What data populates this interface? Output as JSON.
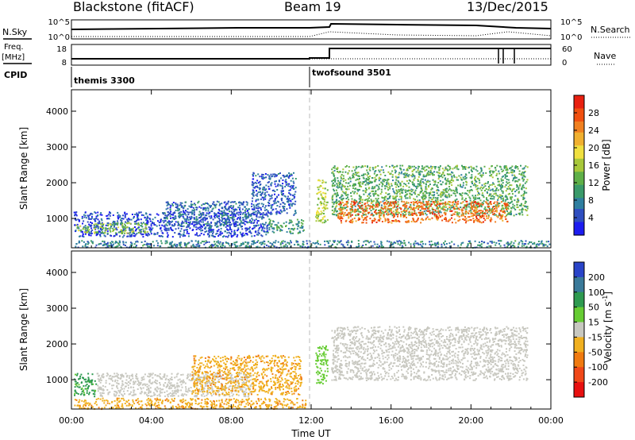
{
  "header": {
    "station": "Blackstone (fitACF)",
    "beam": "Beam 19",
    "date": "13/Dec/2015"
  },
  "side_labels": {
    "nsky": "N.Sky",
    "nsearch": "N.Search",
    "freq_top": "Freq.",
    "freq_unit": "[MHz]",
    "nave": "Nave",
    "cpid": "CPID",
    "nsky_ticks": [
      "10^5",
      "10^0"
    ],
    "nsearch_ticks": [
      "10^5",
      "10^0"
    ],
    "freq_ticks": [
      "18",
      "8"
    ],
    "nave_ticks": [
      "60",
      "0"
    ]
  },
  "cpid_modes": [
    {
      "label": "themis 3300",
      "start_hour": 0
    },
    {
      "label": "twofsound 3501",
      "start_hour": 12.2
    }
  ],
  "chart_data": [
    {
      "type": "heatmap",
      "panel": "power",
      "xlabel": "",
      "ylabel": "Slant Range [km]",
      "x_ticks": [
        "00:00",
        "04:00",
        "08:00",
        "12:00",
        "16:00",
        "20:00",
        "00:00"
      ],
      "x_range_hours": [
        0,
        24
      ],
      "y_range_km": [
        180,
        4600
      ],
      "y_ticks": [
        "1000",
        "2000",
        "3000",
        "4000"
      ],
      "colorbar": {
        "label": "Power [dB]",
        "ticks": [
          "4",
          "8",
          "12",
          "16",
          "20",
          "24",
          "28"
        ],
        "range": [
          0,
          32
        ],
        "colors": [
          "#1c1cf0",
          "#2f4fc0",
          "#2f7fa0",
          "#3a9a6a",
          "#5fb048",
          "#a8c83a",
          "#f0e040",
          "#f0b030",
          "#f08020",
          "#f05010",
          "#e82010"
        ]
      },
      "regions": [
        {
          "t0": 0.1,
          "t1": 9.8,
          "r0": 500,
          "r1": 1200,
          "level": 4
        },
        {
          "t0": 0.2,
          "t1": 3.8,
          "r0": 600,
          "r1": 900,
          "level": 14
        },
        {
          "t0": 4.6,
          "t1": 9.0,
          "r0": 800,
          "r1": 1500,
          "level": 6
        },
        {
          "t0": 9.0,
          "t1": 11.2,
          "r0": 1100,
          "r1": 2300,
          "level": 5
        },
        {
          "t0": 9.8,
          "t1": 11.6,
          "r0": 600,
          "r1": 1000,
          "level": 10
        },
        {
          "t0": 0.1,
          "t1": 24.0,
          "r0": 200,
          "r1": 400,
          "level": 8
        },
        {
          "t0": 12.2,
          "t1": 12.8,
          "r0": 900,
          "r1": 2100,
          "level": 16
        },
        {
          "t0": 13.0,
          "t1": 22.8,
          "r0": 1100,
          "r1": 2500,
          "level": 12
        },
        {
          "t0": 13.3,
          "t1": 21.8,
          "r0": 900,
          "r1": 1500,
          "level": 26
        }
      ]
    },
    {
      "type": "heatmap",
      "panel": "velocity",
      "xlabel": "Time UT",
      "ylabel": "Slant Range [km]",
      "x_ticks": [
        "00:00",
        "04:00",
        "08:00",
        "12:00",
        "16:00",
        "20:00",
        "00:00"
      ],
      "x_range_hours": [
        0,
        24
      ],
      "y_range_km": [
        180,
        4600
      ],
      "y_ticks": [
        "1000",
        "2000",
        "3000",
        "4000"
      ],
      "colorbar": {
        "label": "Velocity [m s^-1]",
        "ticks": [
          "200",
          "100",
          "50",
          "15",
          "-15",
          "-50",
          "-100",
          "-200"
        ],
        "colors": [
          "#2a44c8",
          "#3a7a9a",
          "#2e9a50",
          "#66cc33",
          "#c8c8c0",
          "#f0b020",
          "#f07a10",
          "#f04818",
          "#e81010"
        ]
      },
      "regions": [
        {
          "t0": 0.1,
          "t1": 1.2,
          "r0": 550,
          "r1": 1200,
          "vel": 60
        },
        {
          "t0": 1.2,
          "t1": 9.0,
          "r0": 550,
          "r1": 1200,
          "vel": 0
        },
        {
          "t0": 6.0,
          "t1": 11.5,
          "r0": 600,
          "r1": 1700,
          "vel": -40
        },
        {
          "t0": 0.1,
          "t1": 11.8,
          "r0": 200,
          "r1": 500,
          "vel": -40
        },
        {
          "t0": 12.2,
          "t1": 12.8,
          "r0": 900,
          "r1": 2000,
          "vel": 30
        },
        {
          "t0": 13.0,
          "t1": 22.8,
          "r0": 1000,
          "r1": 2500,
          "vel": 0
        }
      ]
    }
  ]
}
